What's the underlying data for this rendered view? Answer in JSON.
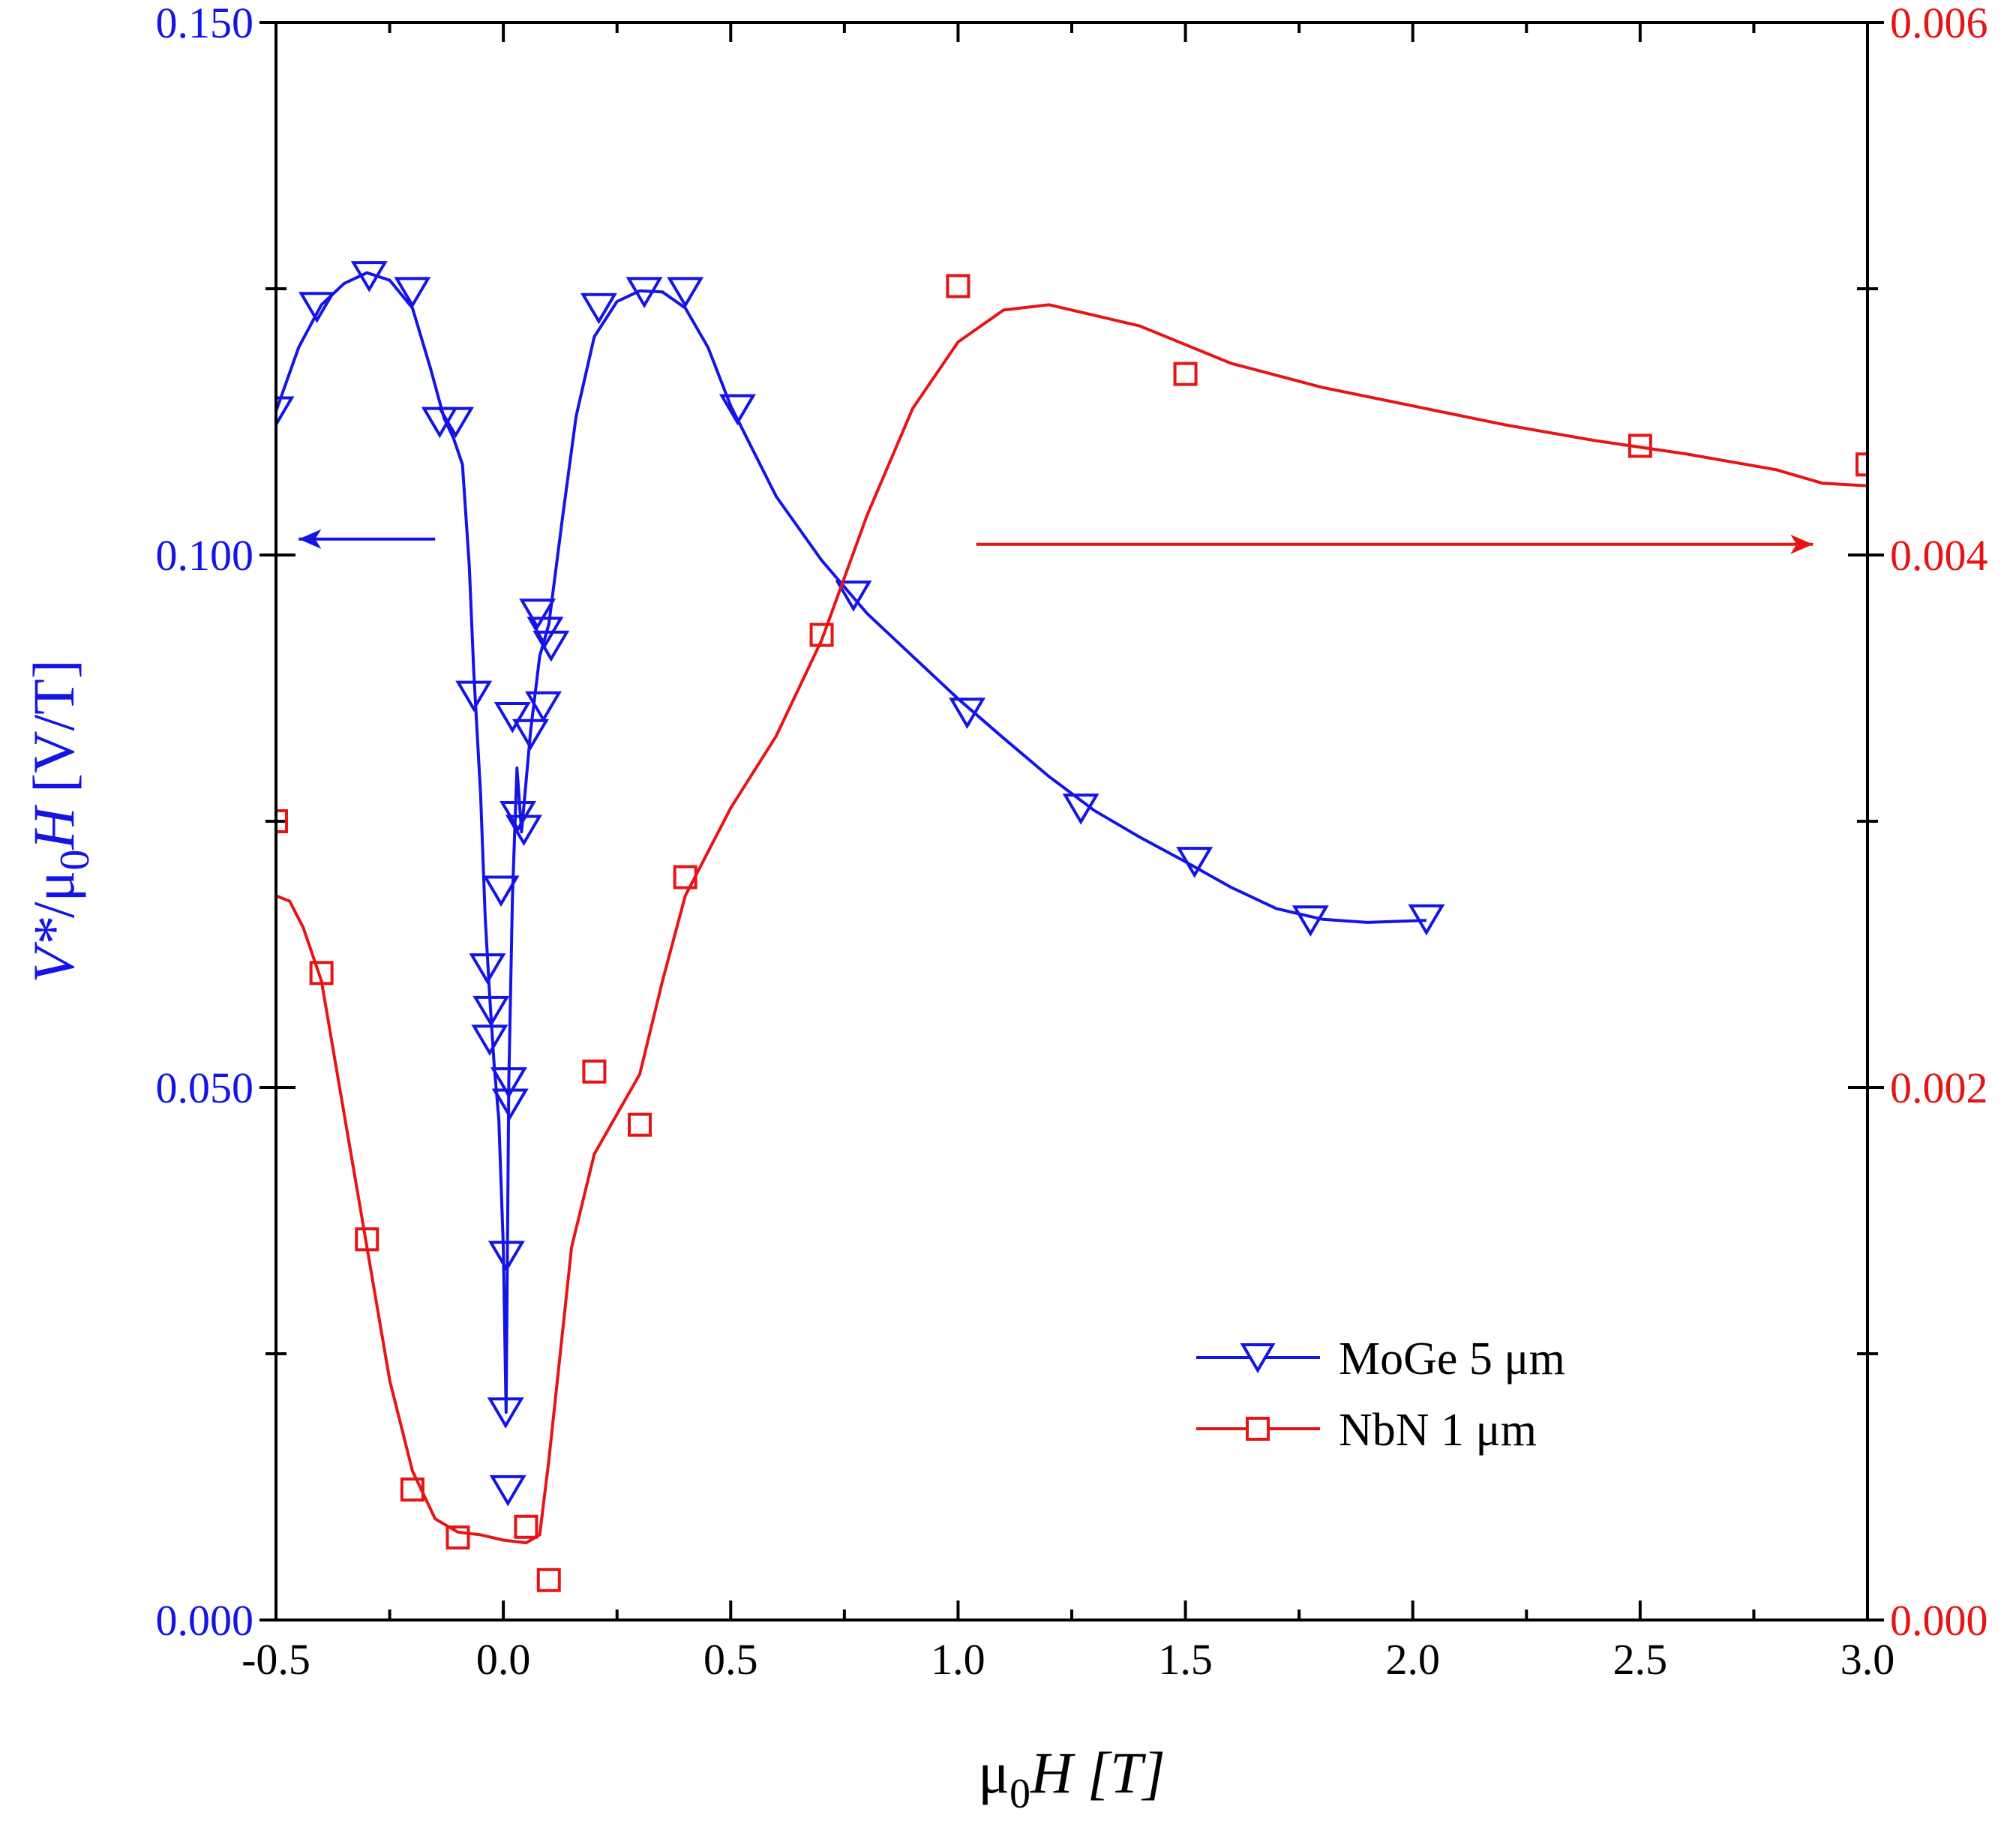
{
  "chart_data": {
    "type": "scatter",
    "xlabel": "μ0H [T]",
    "xlabel_parts": {
      "main": "μ",
      "sub": "0",
      "rest": "H [T]"
    },
    "ylabel": "V*/μ0H [V/T]",
    "ylabel_parts": {
      "italic1": "V*",
      "slash": "/μ",
      "sub": "0",
      "italic2": "H",
      "rest": " [V/T]"
    },
    "x_range": [
      -0.5,
      3.0
    ],
    "y_left_range": [
      0.0,
      0.15
    ],
    "y_right_range": [
      0.0,
      0.006
    ],
    "x_ticks": [
      -0.5,
      0.0,
      0.5,
      1.0,
      1.5,
      2.0,
      2.5,
      3.0
    ],
    "x_tick_labels": [
      "-0.5",
      "0.0",
      "0.5",
      "1.0",
      "1.5",
      "2.0",
      "2.5",
      "3.0"
    ],
    "y_left_ticks": [
      0.0,
      0.05,
      0.1,
      0.15
    ],
    "y_left_tick_labels": [
      "0.000",
      "0.050",
      "0.100",
      "0.150"
    ],
    "y_right_ticks": [
      0.0,
      0.002,
      0.004,
      0.006
    ],
    "y_right_tick_labels": [
      "0.000",
      "0.002",
      "0.004",
      "0.006"
    ],
    "series": [
      {
        "name": "MoGe 5 μm",
        "legend_label": "MoGe 5 μm",
        "axis": "left",
        "marker": "triangle-down",
        "color": "#1414e6",
        "points": [
          {
            "x": -0.5,
            "y": 0.1135
          },
          {
            "x": -0.41,
            "y": 0.1233
          },
          {
            "x": -0.295,
            "y": 0.1262
          },
          {
            "x": -0.2,
            "y": 0.1247
          },
          {
            "x": -0.14,
            "y": 0.1125
          },
          {
            "x": -0.105,
            "y": 0.1125
          },
          {
            "x": -0.065,
            "y": 0.0868
          },
          {
            "x": -0.035,
            "y": 0.0612
          },
          {
            "x": -0.027,
            "y": 0.0572
          },
          {
            "x": -0.03,
            "y": 0.0545
          },
          {
            "x": -0.005,
            "y": 0.0685
          },
          {
            "x": 0.005,
            "y": 0.0195
          },
          {
            "x": 0.007,
            "y": 0.0342
          },
          {
            "x": 0.012,
            "y": 0.0505
          },
          {
            "x": 0.015,
            "y": 0.0485
          },
          {
            "x": 0.02,
            "y": 0.0848
          },
          {
            "x": 0.032,
            "y": 0.0755
          },
          {
            "x": 0.045,
            "y": 0.0742
          },
          {
            "x": 0.06,
            "y": 0.0832
          },
          {
            "x": 0.075,
            "y": 0.0945
          },
          {
            "x": 0.088,
            "y": 0.0858
          },
          {
            "x": 0.092,
            "y": 0.0928
          },
          {
            "x": 0.105,
            "y": 0.0915
          },
          {
            "x": 0.21,
            "y": 0.1232
          },
          {
            "x": 0.31,
            "y": 0.1247
          },
          {
            "x": 0.4,
            "y": 0.1247
          },
          {
            "x": 0.515,
            "y": 0.1137
          },
          {
            "x": 0.77,
            "y": 0.0962
          },
          {
            "x": 1.02,
            "y": 0.0852
          },
          {
            "x": 1.27,
            "y": 0.0762
          },
          {
            "x": 1.52,
            "y": 0.0712
          },
          {
            "x": 1.775,
            "y": 0.0657
          },
          {
            "x": 2.03,
            "y": 0.0658
          },
          {
            "x": 0.01,
            "y": 0.0122
          }
        ],
        "curve": [
          {
            "x": -0.5,
            "y": 0.1135
          },
          {
            "x": -0.45,
            "y": 0.1195
          },
          {
            "x": -0.4,
            "y": 0.1235
          },
          {
            "x": -0.35,
            "y": 0.1255
          },
          {
            "x": -0.3,
            "y": 0.1265
          },
          {
            "x": -0.25,
            "y": 0.1258
          },
          {
            "x": -0.2,
            "y": 0.1232
          },
          {
            "x": -0.16,
            "y": 0.1175
          },
          {
            "x": -0.13,
            "y": 0.1128
          },
          {
            "x": -0.11,
            "y": 0.111
          },
          {
            "x": -0.09,
            "y": 0.1085
          },
          {
            "x": -0.075,
            "y": 0.099
          },
          {
            "x": -0.065,
            "y": 0.089
          },
          {
            "x": -0.05,
            "y": 0.0775
          },
          {
            "x": -0.04,
            "y": 0.066
          },
          {
            "x": -0.03,
            "y": 0.0585
          },
          {
            "x": -0.02,
            "y": 0.052
          },
          {
            "x": -0.01,
            "y": 0.047
          },
          {
            "x": 0.0,
            "y": 0.035
          },
          {
            "x": 0.006,
            "y": 0.0195
          },
          {
            "x": 0.012,
            "y": 0.0505
          },
          {
            "x": 0.02,
            "y": 0.068
          },
          {
            "x": 0.03,
            "y": 0.08
          },
          {
            "x": 0.04,
            "y": 0.074
          },
          {
            "x": 0.06,
            "y": 0.0835
          },
          {
            "x": 0.08,
            "y": 0.0905
          },
          {
            "x": 0.1,
            "y": 0.0935
          },
          {
            "x": 0.13,
            "y": 0.1035
          },
          {
            "x": 0.16,
            "y": 0.113
          },
          {
            "x": 0.2,
            "y": 0.1205
          },
          {
            "x": 0.25,
            "y": 0.1238
          },
          {
            "x": 0.3,
            "y": 0.1248
          },
          {
            "x": 0.35,
            "y": 0.1247
          },
          {
            "x": 0.4,
            "y": 0.1232
          },
          {
            "x": 0.45,
            "y": 0.1195
          },
          {
            "x": 0.5,
            "y": 0.114
          },
          {
            "x": 0.6,
            "y": 0.1055
          },
          {
            "x": 0.7,
            "y": 0.0995
          },
          {
            "x": 0.8,
            "y": 0.0945
          },
          {
            "x": 0.9,
            "y": 0.0905
          },
          {
            "x": 1.0,
            "y": 0.0865
          },
          {
            "x": 1.1,
            "y": 0.0828
          },
          {
            "x": 1.2,
            "y": 0.0792
          },
          {
            "x": 1.3,
            "y": 0.076
          },
          {
            "x": 1.4,
            "y": 0.0735
          },
          {
            "x": 1.5,
            "y": 0.0712
          },
          {
            "x": 1.6,
            "y": 0.0688
          },
          {
            "x": 1.7,
            "y": 0.0668
          },
          {
            "x": 1.8,
            "y": 0.0658
          },
          {
            "x": 1.9,
            "y": 0.0655
          },
          {
            "x": 2.03,
            "y": 0.0657
          }
        ]
      },
      {
        "name": "NbN 1 μm",
        "legend_label": "NbN 1 μm",
        "axis": "right",
        "marker": "square",
        "color": "#e61414",
        "points": [
          {
            "x": -0.5,
            "y": 0.003
          },
          {
            "x": -0.4,
            "y": 0.00243
          },
          {
            "x": -0.3,
            "y": 0.00143
          },
          {
            "x": -0.2,
            "y": 0.00049
          },
          {
            "x": -0.1,
            "y": 0.00031
          },
          {
            "x": 0.05,
            "y": 0.00035
          },
          {
            "x": 0.1,
            "y": 0.00015
          },
          {
            "x": 0.2,
            "y": 0.00206
          },
          {
            "x": 0.3,
            "y": 0.00186
          },
          {
            "x": 0.4,
            "y": 0.00279
          },
          {
            "x": 0.7,
            "y": 0.0037
          },
          {
            "x": 1.0,
            "y": 0.00501
          },
          {
            "x": 1.5,
            "y": 0.00468
          },
          {
            "x": 2.5,
            "y": 0.00441
          },
          {
            "x": 3.0,
            "y": 0.00434
          }
        ],
        "curve": [
          {
            "x": -0.5,
            "y": 0.00272
          },
          {
            "x": -0.47,
            "y": 0.0027
          },
          {
            "x": -0.44,
            "y": 0.0026
          },
          {
            "x": -0.4,
            "y": 0.0024
          },
          {
            "x": -0.35,
            "y": 0.0019
          },
          {
            "x": -0.3,
            "y": 0.0014
          },
          {
            "x": -0.25,
            "y": 0.0009
          },
          {
            "x": -0.2,
            "y": 0.00056
          },
          {
            "x": -0.15,
            "y": 0.00038
          },
          {
            "x": -0.1,
            "y": 0.00033
          },
          {
            "x": -0.05,
            "y": 0.00032
          },
          {
            "x": 0.0,
            "y": 0.0003
          },
          {
            "x": 0.05,
            "y": 0.00029
          },
          {
            "x": 0.08,
            "y": 0.00032
          },
          {
            "x": 0.1,
            "y": 0.0006
          },
          {
            "x": 0.15,
            "y": 0.0014
          },
          {
            "x": 0.2,
            "y": 0.00175
          },
          {
            "x": 0.25,
            "y": 0.0019
          },
          {
            "x": 0.3,
            "y": 0.00205
          },
          {
            "x": 0.35,
            "y": 0.0024
          },
          {
            "x": 0.4,
            "y": 0.00272
          },
          {
            "x": 0.5,
            "y": 0.00305
          },
          {
            "x": 0.6,
            "y": 0.00332
          },
          {
            "x": 0.7,
            "y": 0.00368
          },
          {
            "x": 0.8,
            "y": 0.00415
          },
          {
            "x": 0.9,
            "y": 0.00455
          },
          {
            "x": 1.0,
            "y": 0.0048
          },
          {
            "x": 1.1,
            "y": 0.00492
          },
          {
            "x": 1.2,
            "y": 0.00494
          },
          {
            "x": 1.4,
            "y": 0.00486
          },
          {
            "x": 1.6,
            "y": 0.00472
          },
          {
            "x": 1.8,
            "y": 0.00463
          },
          {
            "x": 2.0,
            "y": 0.00456
          },
          {
            "x": 2.2,
            "y": 0.00449
          },
          {
            "x": 2.4,
            "y": 0.00443
          },
          {
            "x": 2.6,
            "y": 0.00438
          },
          {
            "x": 2.8,
            "y": 0.00432
          },
          {
            "x": 2.9,
            "y": 0.00427
          },
          {
            "x": 3.0,
            "y": 0.00426
          }
        ]
      }
    ],
    "annotations": [
      {
        "type": "arrow",
        "direction": "left",
        "color": "#1414e6",
        "meaning": "MoGe uses left axis",
        "x_from": -0.15,
        "x_to": -0.45,
        "y_left": 0.1015
      },
      {
        "type": "arrow",
        "direction": "right",
        "color": "#e61414",
        "meaning": "NbN uses right axis",
        "x_from": 1.04,
        "x_to": 2.88,
        "y_left": 0.101
      }
    ],
    "legend": {
      "position": "bottom-right"
    },
    "colors": {
      "left_axis": "#1414e6",
      "right_axis": "#e61414",
      "frame": "#000000"
    }
  }
}
